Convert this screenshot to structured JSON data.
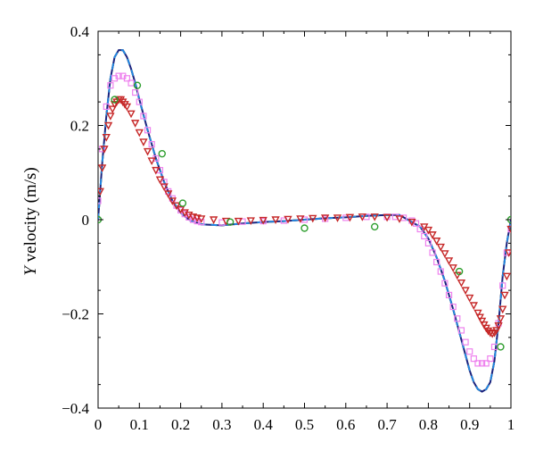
{
  "chart_data": {
    "type": "line",
    "title": "",
    "xlabel": "",
    "ylabel_italic": "Y",
    "ylabel_rest": " velocity (m/s)",
    "xlim": [
      0,
      1
    ],
    "ylim": [
      -0.4,
      0.4
    ],
    "xticks": [
      0,
      0.1,
      0.2,
      0.3,
      0.4,
      0.5,
      0.6,
      0.7,
      0.8,
      0.9,
      1
    ],
    "xtick_labels": [
      "0",
      "0.1",
      "0.2",
      "0.3",
      "0.4",
      "0.5",
      "0.6",
      "0.7",
      "0.8",
      "0.9",
      "1"
    ],
    "yticks": [
      0.4,
      0.2,
      0,
      -0.2,
      -0.4
    ],
    "ytick_labels": [
      "0.4",
      "0.2",
      "0",
      "−0.2",
      "−0.4"
    ],
    "grid": false,
    "legend": "none",
    "series": [
      {
        "style": "line",
        "color": "#1a237e",
        "marker": "none",
        "x": [
          0,
          0.01,
          0.02,
          0.03,
          0.04,
          0.05,
          0.06,
          0.07,
          0.08,
          0.09,
          0.1,
          0.12,
          0.14,
          0.16,
          0.18,
          0.2,
          0.22,
          0.25,
          0.3,
          0.35,
          0.4,
          0.45,
          0.5,
          0.55,
          0.6,
          0.65,
          0.7,
          0.73,
          0.75,
          0.78,
          0.8,
          0.82,
          0.84,
          0.86,
          0.88,
          0.9,
          0.91,
          0.92,
          0.93,
          0.94,
          0.95,
          0.96,
          0.97,
          0.98,
          0.99,
          1
        ],
        "y": [
          0,
          0.12,
          0.22,
          0.3,
          0.345,
          0.36,
          0.36,
          0.345,
          0.32,
          0.29,
          0.255,
          0.19,
          0.13,
          0.08,
          0.04,
          0.015,
          0,
          -0.01,
          -0.012,
          -0.008,
          -0.005,
          -0.003,
          0,
          0.003,
          0.005,
          0.008,
          0.01,
          0.01,
          0,
          -0.015,
          -0.04,
          -0.08,
          -0.13,
          -0.19,
          -0.255,
          -0.32,
          -0.345,
          -0.36,
          -0.365,
          -0.36,
          -0.345,
          -0.3,
          -0.22,
          -0.12,
          -0.05,
          0
        ]
      },
      {
        "style": "dashed-line",
        "color": "#2e7d32",
        "marker": "none",
        "x": [
          0,
          0.01,
          0.02,
          0.03,
          0.04,
          0.05,
          0.06,
          0.07,
          0.08,
          0.09,
          0.1,
          0.12,
          0.14,
          0.16,
          0.18,
          0.2,
          0.22,
          0.25,
          0.3,
          0.35,
          0.4,
          0.45,
          0.5,
          0.55,
          0.6,
          0.65,
          0.7,
          0.73,
          0.75,
          0.78,
          0.8,
          0.82,
          0.84,
          0.86,
          0.88,
          0.9,
          0.91,
          0.92,
          0.93,
          0.94,
          0.95,
          0.96,
          0.97,
          0.98,
          0.99,
          1
        ],
        "y": [
          0,
          0.12,
          0.22,
          0.3,
          0.345,
          0.36,
          0.36,
          0.345,
          0.32,
          0.29,
          0.255,
          0.19,
          0.13,
          0.08,
          0.04,
          0.015,
          0,
          -0.01,
          -0.012,
          -0.008,
          -0.005,
          -0.003,
          0,
          0.003,
          0.005,
          0.008,
          0.01,
          0.01,
          0,
          -0.015,
          -0.04,
          -0.08,
          -0.13,
          -0.19,
          -0.255,
          -0.32,
          -0.345,
          -0.36,
          -0.365,
          -0.36,
          -0.345,
          -0.3,
          -0.22,
          -0.12,
          -0.05,
          0
        ]
      },
      {
        "style": "dashed-line",
        "color": "#e53935",
        "marker": "none",
        "x": [
          0,
          0.01,
          0.02,
          0.03,
          0.04,
          0.05,
          0.06,
          0.07,
          0.08,
          0.09,
          0.1,
          0.12,
          0.14,
          0.16,
          0.18,
          0.2,
          0.22,
          0.25,
          0.3,
          0.35,
          0.4,
          0.45,
          0.5,
          0.55,
          0.6,
          0.65,
          0.7,
          0.73,
          0.75,
          0.78,
          0.8,
          0.82,
          0.84,
          0.86,
          0.88,
          0.9,
          0.91,
          0.92,
          0.93,
          0.94,
          0.95,
          0.96,
          0.97,
          0.98,
          0.99,
          1
        ],
        "y": [
          0,
          0.12,
          0.22,
          0.3,
          0.345,
          0.36,
          0.36,
          0.345,
          0.32,
          0.29,
          0.255,
          0.19,
          0.13,
          0.08,
          0.04,
          0.015,
          0,
          -0.01,
          -0.012,
          -0.008,
          -0.005,
          -0.003,
          0,
          0.003,
          0.005,
          0.008,
          0.01,
          0.01,
          0,
          -0.015,
          -0.04,
          -0.08,
          -0.13,
          -0.19,
          -0.255,
          -0.32,
          -0.345,
          -0.36,
          -0.365,
          -0.36,
          -0.345,
          -0.3,
          -0.22,
          -0.12,
          -0.05,
          0
        ]
      },
      {
        "style": "dashed-line",
        "color": "#1e88e5",
        "marker": "none",
        "x": [
          0,
          0.01,
          0.02,
          0.03,
          0.04,
          0.05,
          0.06,
          0.07,
          0.08,
          0.09,
          0.1,
          0.12,
          0.14,
          0.16,
          0.18,
          0.2,
          0.22,
          0.25,
          0.3,
          0.35,
          0.4,
          0.45,
          0.5,
          0.55,
          0.6,
          0.65,
          0.7,
          0.73,
          0.75,
          0.78,
          0.8,
          0.82,
          0.84,
          0.86,
          0.88,
          0.9,
          0.91,
          0.92,
          0.93,
          0.94,
          0.95,
          0.96,
          0.97,
          0.98,
          0.99,
          1
        ],
        "y": [
          0,
          0.12,
          0.22,
          0.3,
          0.345,
          0.36,
          0.36,
          0.345,
          0.32,
          0.29,
          0.255,
          0.19,
          0.13,
          0.08,
          0.04,
          0.015,
          0,
          -0.01,
          -0.012,
          -0.008,
          -0.005,
          -0.003,
          0,
          0.003,
          0.005,
          0.008,
          0.01,
          0.01,
          0,
          -0.015,
          -0.04,
          -0.08,
          -0.13,
          -0.19,
          -0.255,
          -0.32,
          -0.345,
          -0.36,
          -0.365,
          -0.36,
          -0.345,
          -0.3,
          -0.22,
          -0.12,
          -0.05,
          0
        ]
      },
      {
        "style": "markers",
        "color": "#ee82ee",
        "marker": "square",
        "x": [
          0,
          0.01,
          0.02,
          0.03,
          0.04,
          0.05,
          0.06,
          0.07,
          0.08,
          0.09,
          0.1,
          0.11,
          0.12,
          0.13,
          0.14,
          0.15,
          0.16,
          0.17,
          0.18,
          0.19,
          0.2,
          0.21,
          0.22,
          0.23,
          0.24,
          0.25,
          0.3,
          0.35,
          0.4,
          0.45,
          0.5,
          0.55,
          0.6,
          0.65,
          0.7,
          0.72,
          0.74,
          0.76,
          0.77,
          0.78,
          0.79,
          0.8,
          0.81,
          0.82,
          0.83,
          0.84,
          0.85,
          0.86,
          0.87,
          0.88,
          0.89,
          0.9,
          0.91,
          0.92,
          0.93,
          0.94,
          0.95,
          0.96,
          0.97,
          0.98,
          0.99,
          1
        ],
        "y": [
          0.04,
          0.15,
          0.24,
          0.285,
          0.3,
          0.305,
          0.305,
          0.3,
          0.29,
          0.27,
          0.25,
          0.22,
          0.19,
          0.16,
          0.13,
          0.105,
          0.08,
          0.06,
          0.045,
          0.03,
          0.02,
          0.012,
          0.005,
          0,
          -0.003,
          -0.005,
          -0.006,
          -0.004,
          -0.003,
          -0.002,
          0,
          0.002,
          0.004,
          0.006,
          0.006,
          0.006,
          0.004,
          -0.002,
          -0.008,
          -0.02,
          -0.035,
          -0.05,
          -0.07,
          -0.09,
          -0.11,
          -0.135,
          -0.16,
          -0.185,
          -0.21,
          -0.235,
          -0.26,
          -0.28,
          -0.295,
          -0.305,
          -0.305,
          -0.305,
          -0.295,
          -0.27,
          -0.22,
          -0.14,
          -0.07,
          -0.02
        ]
      },
      {
        "style": "markers",
        "color": "#c62828",
        "marker": "triangle-down",
        "x": [
          0.005,
          0.01,
          0.015,
          0.02,
          0.025,
          0.03,
          0.035,
          0.04,
          0.045,
          0.05,
          0.055,
          0.06,
          0.065,
          0.07,
          0.08,
          0.09,
          0.1,
          0.11,
          0.12,
          0.13,
          0.14,
          0.15,
          0.16,
          0.17,
          0.18,
          0.19,
          0.2,
          0.21,
          0.22,
          0.23,
          0.24,
          0.25,
          0.28,
          0.31,
          0.34,
          0.37,
          0.4,
          0.43,
          0.46,
          0.49,
          0.52,
          0.55,
          0.58,
          0.61,
          0.64,
          0.67,
          0.7,
          0.73,
          0.76,
          0.79,
          0.8,
          0.81,
          0.82,
          0.83,
          0.84,
          0.85,
          0.86,
          0.87,
          0.88,
          0.89,
          0.9,
          0.91,
          0.92,
          0.925,
          0.93,
          0.935,
          0.94,
          0.945,
          0.95,
          0.955,
          0.96,
          0.965,
          0.97,
          0.975,
          0.98,
          0.985,
          0.99,
          0.995,
          1
        ],
        "y": [
          0.06,
          0.11,
          0.15,
          0.175,
          0.2,
          0.22,
          0.235,
          0.245,
          0.25,
          0.255,
          0.255,
          0.25,
          0.245,
          0.24,
          0.225,
          0.205,
          0.185,
          0.165,
          0.145,
          0.125,
          0.105,
          0.085,
          0.07,
          0.055,
          0.04,
          0.03,
          0.022,
          0.015,
          0.01,
          0.006,
          0.004,
          0.002,
          0,
          -0.003,
          -0.003,
          -0.002,
          -0.001,
          0,
          0.001,
          0.002,
          0.003,
          0.004,
          0.004,
          0.005,
          0.006,
          0.006,
          0.005,
          0.002,
          -0.005,
          -0.015,
          -0.022,
          -0.032,
          -0.045,
          -0.058,
          -0.072,
          -0.087,
          -0.102,
          -0.118,
          -0.134,
          -0.15,
          -0.166,
          -0.182,
          -0.198,
          -0.207,
          -0.215,
          -0.223,
          -0.23,
          -0.236,
          -0.24,
          -0.242,
          -0.24,
          -0.235,
          -0.225,
          -0.21,
          -0.19,
          -0.16,
          -0.12,
          -0.07,
          -0.02
        ]
      },
      {
        "style": "markers",
        "color": "#2e9e2e",
        "marker": "circle-open",
        "x": [
          0,
          0.04,
          0.095,
          0.155,
          0.205,
          0.32,
          0.5,
          0.67,
          0.875,
          0.975,
          1
        ],
        "y": [
          0,
          0.255,
          0.285,
          0.14,
          0.035,
          -0.005,
          -0.018,
          -0.015,
          -0.11,
          -0.27,
          0
        ]
      }
    ]
  }
}
